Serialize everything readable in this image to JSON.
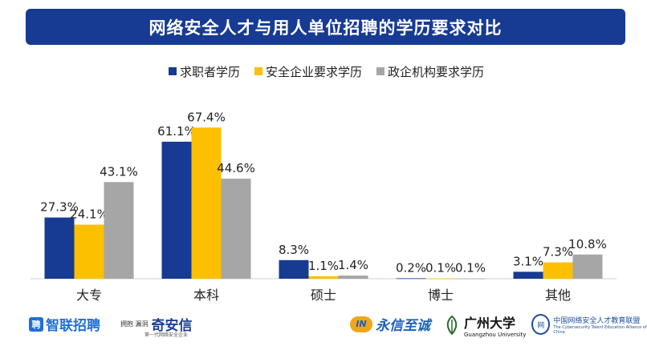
{
  "chart_data": {
    "type": "bar",
    "title": "网络安全人才与用人单位招聘的学历要求对比",
    "categories": [
      "大专",
      "本科",
      "硕士",
      "博士",
      "其他"
    ],
    "series": [
      {
        "name": "求职者学历",
        "color": "#173b93",
        "values": [
          27.3,
          61.1,
          8.3,
          0.2,
          3.1
        ],
        "labels": [
          "27.3%",
          "61.1%",
          "8.3%",
          "0.2%",
          "3.1%"
        ]
      },
      {
        "name": "安全企业要求学历",
        "color": "#fcc000",
        "values": [
          24.1,
          67.4,
          1.1,
          0.1,
          7.3
        ],
        "labels": [
          "24.1%",
          "67.4%",
          "1.1%",
          "0.1%",
          "7.3%"
        ]
      },
      {
        "name": "政企机构要求学历",
        "color": "#a6a6a6",
        "values": [
          43.1,
          44.6,
          1.4,
          0.1,
          10.8
        ],
        "labels": [
          "43.1%",
          "44.6%",
          "1.4%",
          "0.1%",
          "10.8%"
        ]
      }
    ],
    "ylim": [
      0,
      70
    ],
    "grid": false,
    "legend_position": "top"
  },
  "logos": {
    "zhilian_mark": "聘",
    "zhilian": "智联招聘",
    "qianxin_small": "拥抱\n漏洞",
    "qianxin": "奇安信",
    "qianxin_sub": "第一代网络安全企业",
    "yongxin_mark": "IN",
    "yongxin": "永信至诚",
    "gzu_cn": "广州大学",
    "gzu_en": "Guangzhou University",
    "alliance_seal": "网",
    "alliance_cn": "中国网络安全人才教育联盟",
    "alliance_en": "The Cybersecurity Talent Education Alliance of China"
  }
}
